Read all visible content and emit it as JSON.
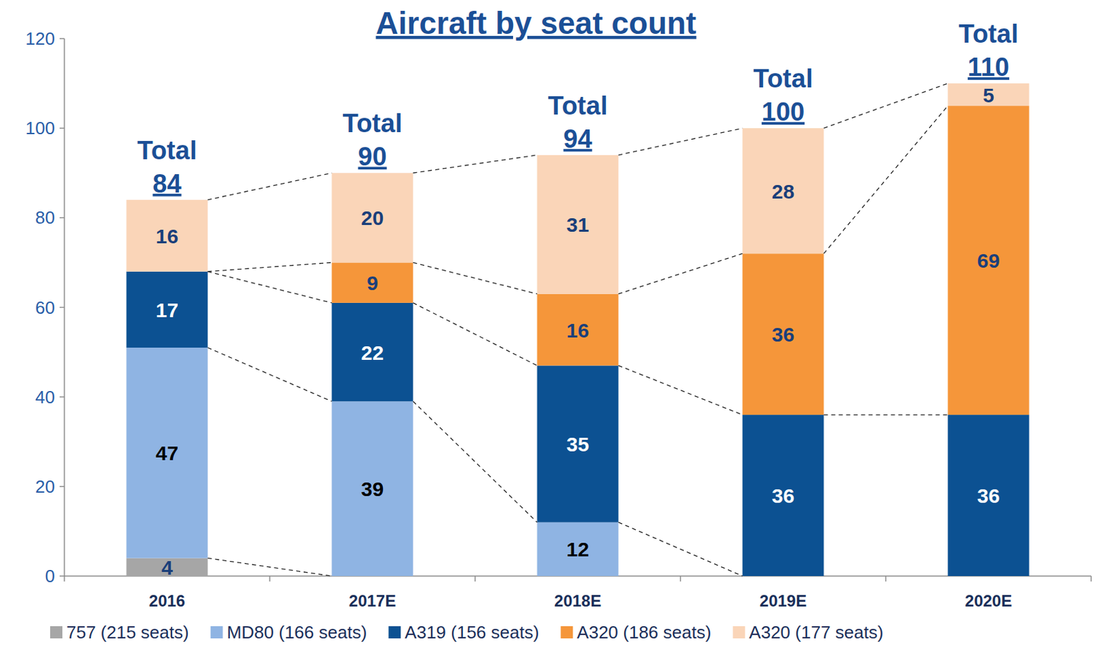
{
  "chart_data": {
    "type": "bar",
    "title": "Aircraft by seat count",
    "stacked": true,
    "data_labels": true,
    "grid": false,
    "legend": "bottom",
    "categories": [
      "2016",
      "2017E",
      "2018E",
      "2019E",
      "2020E"
    ],
    "series": [
      {
        "name": "757 (215 seats)",
        "color": "#a6a6a6",
        "values": [
          4,
          null,
          null,
          null,
          null
        ]
      },
      {
        "name": "MD80 (166 seats)",
        "color": "#8fb4e3",
        "values": [
          47,
          39,
          12,
          null,
          null
        ]
      },
      {
        "name": "A319 (156 seats)",
        "color": "#0c5192",
        "values": [
          17,
          22,
          35,
          36,
          36
        ]
      },
      {
        "name": "A320 (186 seats)",
        "color": "#f5963a",
        "values": [
          null,
          9,
          16,
          36,
          69
        ]
      },
      {
        "name": "A320 (177 seats)",
        "color": "#fad5b8",
        "values": [
          16,
          20,
          31,
          28,
          5
        ]
      }
    ],
    "total_label": "Total",
    "totals": [
      84,
      90,
      94,
      100,
      110
    ],
    "ylim": [
      0,
      120
    ],
    "yticks": [
      0,
      20,
      40,
      60,
      80,
      100,
      120
    ]
  }
}
